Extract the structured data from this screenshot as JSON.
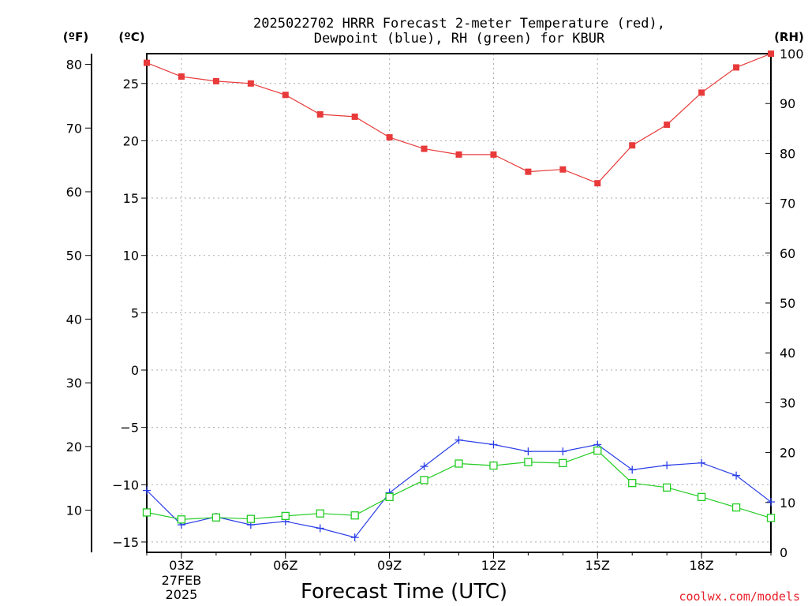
{
  "chart_data": {
    "type": "line",
    "title_line1": "2025022702 HRRR Forecast 2-meter Temperature (red),",
    "title_line2": "Dewpoint (blue), RH (green) for KBUR",
    "xlabel": "Forecast Time (UTC)",
    "credit": "coolwx.com/models",
    "units": {
      "fahrenheit": "(ºF)",
      "celsius": "(ºC)",
      "rh": "(RH)"
    },
    "x_hours": [
      2,
      3,
      4,
      5,
      6,
      7,
      8,
      9,
      10,
      11,
      12,
      13,
      14,
      15,
      16,
      17,
      18,
      19,
      20
    ],
    "xlim": [
      2,
      20
    ],
    "x_ticks": [
      {
        "hour": 3,
        "label": "03Z",
        "sub1": "27FEB",
        "sub2": "2025"
      },
      {
        "hour": 6,
        "label": "06Z",
        "sub1": "",
        "sub2": ""
      },
      {
        "hour": 9,
        "label": "09Z",
        "sub1": "",
        "sub2": ""
      },
      {
        "hour": 12,
        "label": "12Z",
        "sub1": "",
        "sub2": ""
      },
      {
        "hour": 15,
        "label": "15Z",
        "sub1": "",
        "sub2": ""
      },
      {
        "hour": 18,
        "label": "18Z",
        "sub1": "",
        "sub2": ""
      }
    ],
    "celsius_ticks": [
      25,
      20,
      15,
      10,
      5,
      0,
      -5,
      -10,
      -15
    ],
    "fahrenheit_ticks": [
      80,
      70,
      60,
      50,
      40,
      30,
      20,
      10
    ],
    "rh_ticks": [
      100,
      90,
      80,
      70,
      60,
      50,
      40,
      30,
      20,
      10,
      0
    ],
    "ylim_c": [
      -15.9,
      27.6
    ],
    "ylim_rh": [
      0,
      100
    ],
    "grid": true,
    "colors": {
      "temperature": "#e83a3a",
      "dewpoint": "#2a3ee8",
      "rh": "#22cc22",
      "grid": "#aaaaaa"
    },
    "series": [
      {
        "name": "Temperature (red)",
        "axis": "celsius",
        "marker": "filled-square",
        "values": [
          26.8,
          25.6,
          25.2,
          25.0,
          24.0,
          22.3,
          22.1,
          20.3,
          19.3,
          18.8,
          18.8,
          17.3,
          17.5,
          16.3,
          19.6,
          21.4,
          24.2,
          26.4,
          27.6
        ]
      },
      {
        "name": "Dewpoint (blue)",
        "axis": "celsius",
        "marker": "plus",
        "values": [
          -10.5,
          -13.5,
          -12.8,
          -13.5,
          -13.2,
          -13.8,
          -14.6,
          -10.7,
          -8.4,
          -6.1,
          -6.5,
          -7.1,
          -7.1,
          -6.5,
          -8.7,
          -8.3,
          -8.1,
          -9.2,
          -11.5
        ]
      },
      {
        "name": "RH (green)",
        "axis": "rh",
        "marker": "open-square",
        "values": [
          8.0,
          6.6,
          7.0,
          6.7,
          7.3,
          7.8,
          7.4,
          11.1,
          14.5,
          17.8,
          17.4,
          18.1,
          17.9,
          20.4,
          13.9,
          13.0,
          11.1,
          9.0,
          6.9
        ]
      }
    ]
  }
}
